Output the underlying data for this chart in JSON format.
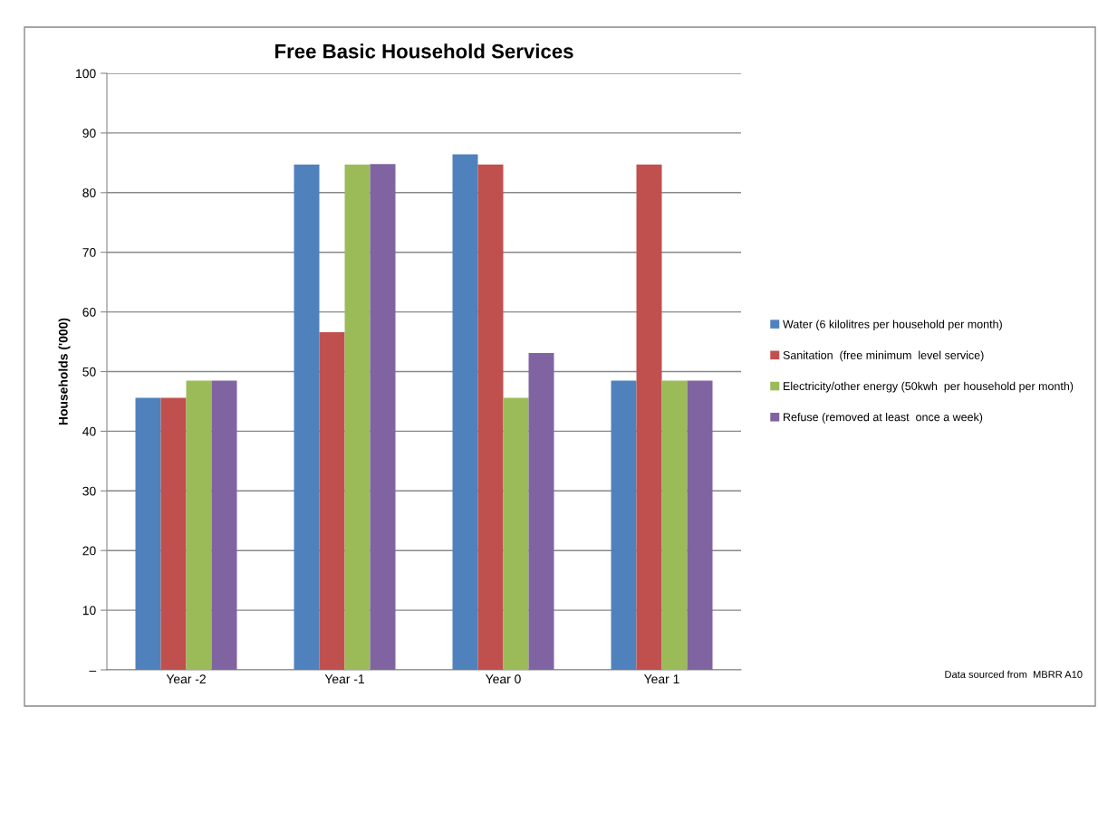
{
  "chart_data": {
    "type": "bar",
    "title": "Free Basic Household Services",
    "ylabel": "Households ('000)",
    "categories": [
      "Year -2",
      "Year -1",
      "Year 0",
      "Year 1"
    ],
    "series": [
      {
        "name": "Water (6 kilolitres per household per month)",
        "color": "#4f81bd",
        "values": [
          45.6,
          84.7,
          86.4,
          48.5
        ]
      },
      {
        "name": "Sanitation  (free minimum  level service)",
        "color": "#c0504d",
        "values": [
          45.6,
          56.6,
          84.7,
          84.7
        ]
      },
      {
        "name": "Electricity/other energy (50kwh  per household per month)",
        "color": "#9bbb59",
        "values": [
          48.5,
          84.7,
          45.6,
          48.5
        ]
      },
      {
        "name": "Refuse (removed at least  once a week)",
        "color": "#8064a2",
        "values": [
          48.5,
          84.8,
          53.1,
          48.5
        ]
      }
    ],
    "ylim": [
      0,
      100
    ],
    "yticks": [
      {
        "value": 0,
        "label": "–"
      },
      10,
      20,
      30,
      40,
      50,
      60,
      70,
      80,
      90,
      100
    ],
    "grid": "y",
    "legend": "right",
    "annotations": [
      "Data sourced from  MBRR A10"
    ]
  }
}
